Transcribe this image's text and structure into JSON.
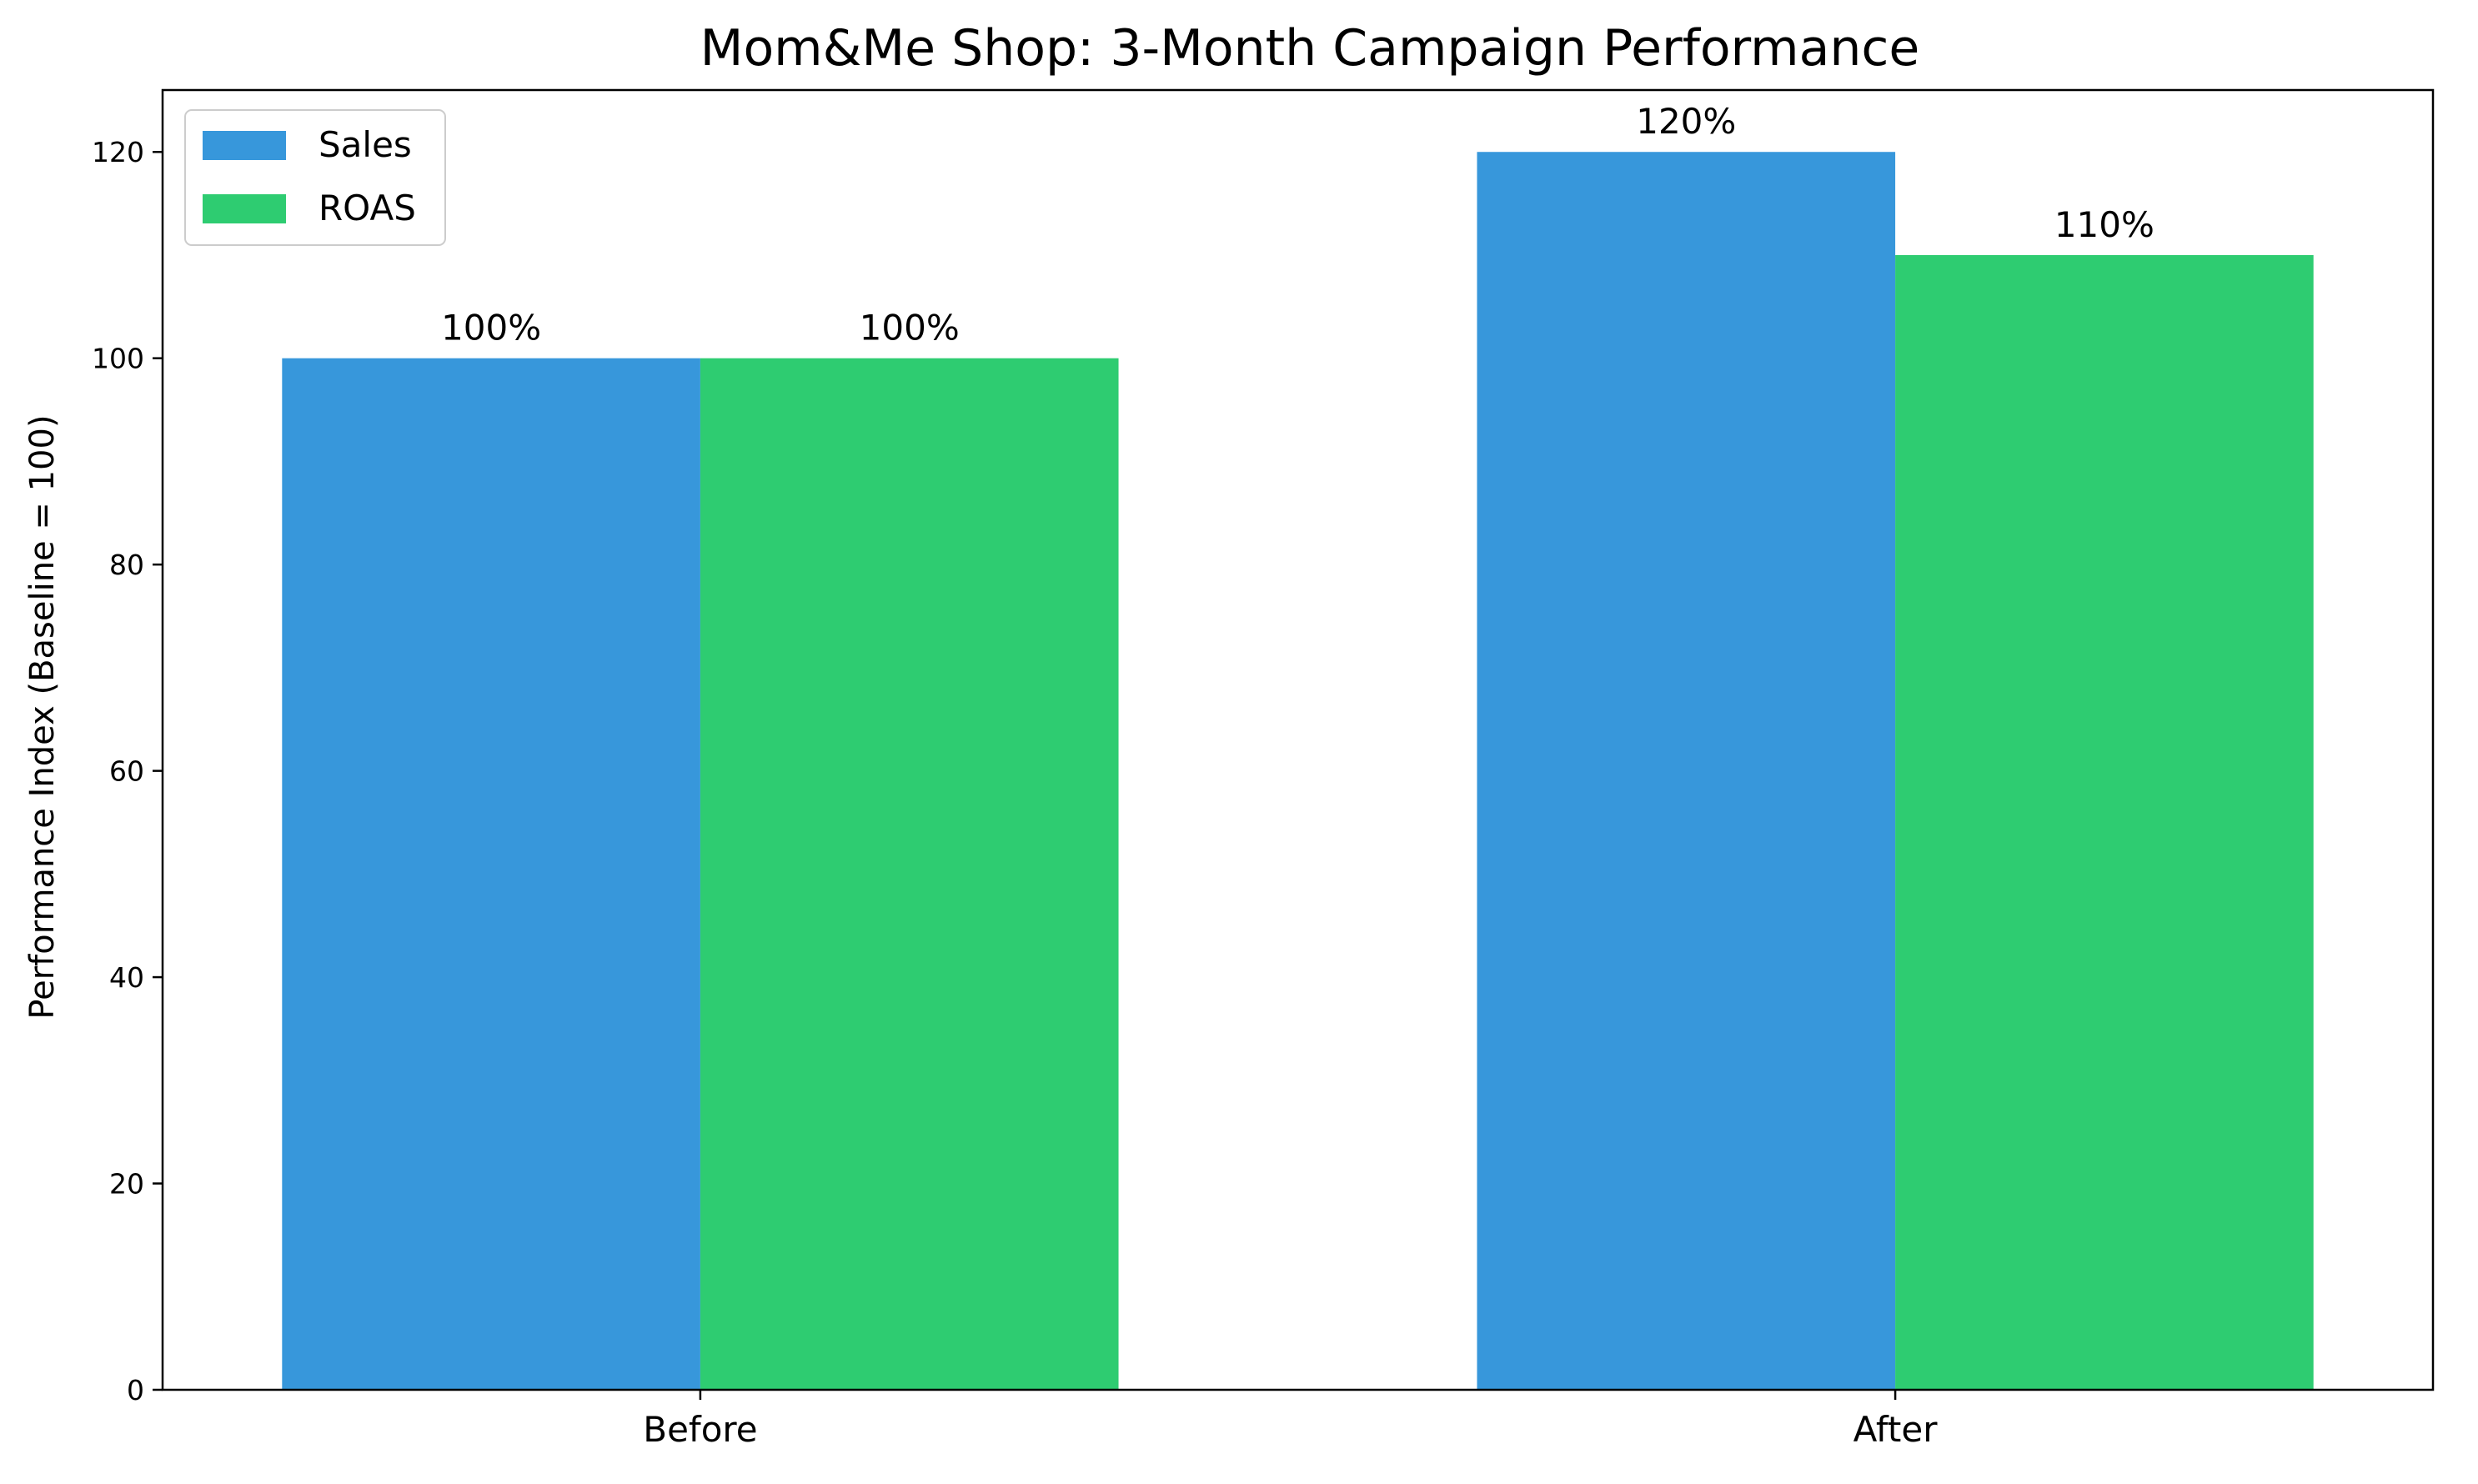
{
  "chart_data": {
    "type": "bar",
    "title": "Mom&Me Shop: 3-Month Campaign Performance",
    "xlabel": "",
    "ylabel": "Performance Index (Baseline = 100)",
    "categories": [
      "Before",
      "After"
    ],
    "series": [
      {
        "name": "Sales",
        "color": "#3797DB",
        "values": [
          100,
          120
        ],
        "labels": [
          "100%",
          "120%"
        ]
      },
      {
        "name": "ROAS",
        "color": "#2ECC71",
        "values": [
          100,
          110
        ],
        "labels": [
          "100%",
          "110%"
        ]
      }
    ],
    "ylim": [
      0,
      126
    ],
    "yticks": [
      0,
      20,
      40,
      60,
      80,
      100,
      120
    ],
    "grid": false,
    "legend": {
      "placement": "top-left"
    }
  }
}
